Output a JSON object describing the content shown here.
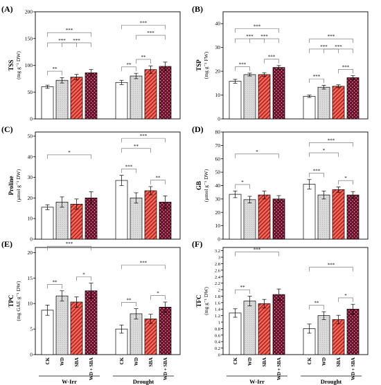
{
  "figure": {
    "treatments": [
      "CK",
      "WD",
      "SBA",
      "WD + SBA"
    ],
    "conditions": [
      "W-Irr",
      "Drought"
    ],
    "colors": {
      "CK": "#ffffff",
      "WD": "#d9d9d9",
      "SBA": "#f26b5a",
      "WD + SBA": "#6b0f2a",
      "SBA_hatch": "#b02020",
      "WD + SBA_dots": "#f0b8c8",
      "axis": "#000000",
      "bracket": "#666666"
    }
  },
  "chart_data": [
    {
      "panel": "(A)",
      "type": "bar",
      "title": "",
      "ylabel": "TSS",
      "yunit": "(mg g⁻¹ DW)",
      "ylim": [
        0,
        200
      ],
      "yticks": [
        0,
        50,
        100,
        150,
        200
      ],
      "categories": [
        "CK",
        "WD",
        "SBA",
        "WD + SBA"
      ],
      "groups": [
        "W-Irr",
        "Drought"
      ],
      "series": [
        {
          "group": "W-Irr",
          "values": [
            60,
            72,
            78,
            86
          ],
          "errors": [
            3,
            5,
            5,
            6
          ]
        },
        {
          "group": "Drought",
          "values": [
            68,
            80,
            92,
            98
          ],
          "errors": [
            4,
            5,
            7,
            8
          ]
        }
      ],
      "annotations": [
        {
          "group": "W-Irr",
          "from": 0,
          "to": 1,
          "label": "**"
        },
        {
          "group": "W-Irr",
          "from": 0,
          "to": 2,
          "label": "***"
        },
        {
          "group": "W-Irr",
          "from": 1,
          "to": 3,
          "label": "***"
        },
        {
          "group": "W-Irr",
          "from": 0,
          "to": 3,
          "label": "***"
        },
        {
          "group": "Drought",
          "from": 0,
          "to": 1,
          "label": "**"
        },
        {
          "group": "Drought",
          "from": 1,
          "to": 2,
          "label": "**"
        },
        {
          "group": "Drought",
          "from": 1,
          "to": 3,
          "label": "***"
        },
        {
          "group": "Drought",
          "from": 0,
          "to": 3,
          "label": "***"
        }
      ]
    },
    {
      "panel": "(B)",
      "type": "bar",
      "title": "",
      "ylabel": "TSP",
      "yunit": "(mg g⁻¹ FW)",
      "ylim": [
        0,
        45
      ],
      "yticks": [
        0,
        10,
        20,
        30,
        40
      ],
      "categories": [
        "CK",
        "WD",
        "SBA",
        "WD + SBA"
      ],
      "groups": [
        "W-Irr",
        "Drought"
      ],
      "series": [
        {
          "group": "W-Irr",
          "values": [
            15.8,
            18.6,
            18.6,
            21.6
          ],
          "errors": [
            0.8,
            0.6,
            0.8,
            0.8
          ]
        },
        {
          "group": "Drought",
          "values": [
            9.5,
            13.3,
            13.7,
            17.3
          ],
          "errors": [
            0.5,
            0.8,
            0.6,
            0.8
          ]
        }
      ],
      "annotations": [
        {
          "group": "W-Irr",
          "from": 0,
          "to": 1,
          "label": "***"
        },
        {
          "group": "W-Irr",
          "from": 2,
          "to": 3,
          "label": "***"
        },
        {
          "group": "W-Irr",
          "from": 0,
          "to": 2,
          "label": "***"
        },
        {
          "group": "W-Irr",
          "from": 1,
          "to": 3,
          "label": "***"
        },
        {
          "group": "W-Irr",
          "from": 0,
          "to": 3,
          "label": "***"
        },
        {
          "group": "Drought",
          "from": 0,
          "to": 1,
          "label": "***"
        },
        {
          "group": "Drought",
          "from": 2,
          "to": 3,
          "label": "***"
        },
        {
          "group": "Drought",
          "from": 0,
          "to": 2,
          "label": "***"
        },
        {
          "group": "Drought",
          "from": 1,
          "to": 3,
          "label": "***"
        },
        {
          "group": "Drought",
          "from": 0,
          "to": 3,
          "label": "***"
        }
      ]
    },
    {
      "panel": "(C)",
      "type": "bar",
      "title": "",
      "ylabel": "Proline",
      "yunit": "(µmol g⁻¹ DW)",
      "ylim": [
        0,
        52
      ],
      "yticks": [
        0,
        10,
        20,
        30,
        40,
        50
      ],
      "categories": [
        "CK",
        "WD",
        "SBA",
        "WD + SBA"
      ],
      "groups": [
        "W-Irr",
        "Drought"
      ],
      "series": [
        {
          "group": "W-Irr",
          "values": [
            15.5,
            18,
            17,
            20
          ],
          "errors": [
            1.2,
            2.5,
            2.5,
            3
          ]
        },
        {
          "group": "Drought",
          "values": [
            28.5,
            20,
            23.5,
            18
          ],
          "errors": [
            2.5,
            2.5,
            2,
            3
          ]
        }
      ],
      "annotations": [
        {
          "group": "W-Irr",
          "from": 0,
          "to": 3,
          "label": "*"
        },
        {
          "group": "Drought",
          "from": 0,
          "to": 1,
          "label": "***"
        },
        {
          "group": "Drought",
          "from": 2,
          "to": 3,
          "label": "**"
        },
        {
          "group": "Drought",
          "from": 0,
          "to": 2,
          "label": "**"
        },
        {
          "group": "Drought",
          "from": 0,
          "to": 3,
          "label": "***"
        }
      ]
    },
    {
      "panel": "(D)",
      "type": "bar",
      "title": "",
      "ylabel": "GB",
      "yunit": "(µmol g⁻¹ DW)",
      "ylim": [
        0,
        80
      ],
      "yticks": [
        0,
        10,
        20,
        30,
        40,
        50,
        60,
        70,
        80
      ],
      "categories": [
        "CK",
        "WD",
        "SBA",
        "WD + SBA"
      ],
      "groups": [
        "W-Irr",
        "Drought"
      ],
      "series": [
        {
          "group": "W-Irr",
          "values": [
            33.5,
            29.5,
            33,
            30
          ],
          "errors": [
            2.5,
            2.5,
            3,
            2.5
          ]
        },
        {
          "group": "Drought",
          "values": [
            41,
            33,
            37,
            33
          ],
          "errors": [
            3.5,
            3,
            2,
            2.5
          ]
        }
      ],
      "annotations": [
        {
          "group": "W-Irr",
          "from": 0,
          "to": 1,
          "label": "*"
        },
        {
          "group": "W-Irr",
          "from": 0,
          "to": 3,
          "label": "*"
        },
        {
          "group": "Drought",
          "from": 0,
          "to": 1,
          "label": "***"
        },
        {
          "group": "Drought",
          "from": 2,
          "to": 3,
          "label": "*"
        },
        {
          "group": "Drought",
          "from": 0,
          "to": 2,
          "label": "*"
        },
        {
          "group": "Drought",
          "from": 0,
          "to": 3,
          "label": "***"
        }
      ]
    },
    {
      "panel": "(E)",
      "type": "bar",
      "title": "",
      "ylabel": "TPC",
      "yunit": "(mg GAE g⁻¹ DW)",
      "ylim": [
        0,
        21
      ],
      "yticks": [
        0,
        5,
        10,
        15,
        20
      ],
      "categories": [
        "CK",
        "WD",
        "SBA",
        "WD + SBA"
      ],
      "groups": [
        "W-Irr",
        "Drought"
      ],
      "series": [
        {
          "group": "W-Irr",
          "values": [
            8.7,
            11.5,
            10.3,
            12.5
          ],
          "errors": [
            1.0,
            1.0,
            1.0,
            1.5
          ]
        },
        {
          "group": "Drought",
          "values": [
            5.0,
            8.0,
            7.0,
            9.3
          ],
          "errors": [
            0.8,
            1.0,
            0.9,
            1.0
          ]
        }
      ],
      "annotations": [
        {
          "group": "W-Irr",
          "from": 0,
          "to": 1,
          "label": "**"
        },
        {
          "group": "W-Irr",
          "from": 2,
          "to": 3,
          "label": "*"
        },
        {
          "group": "W-Irr",
          "from": 0,
          "to": 3,
          "label": "***"
        },
        {
          "group": "Drought",
          "from": 0,
          "to": 1,
          "label": "**"
        },
        {
          "group": "Drought",
          "from": 2,
          "to": 3,
          "label": "*"
        },
        {
          "group": "Drought",
          "from": 0,
          "to": 3,
          "label": "***"
        }
      ]
    },
    {
      "panel": "(F)",
      "type": "bar",
      "title": "",
      "ylabel": "TFC",
      "yunit": "(mg g⁻¹ DW)",
      "ylim": [
        0,
        3.3
      ],
      "yticks": [
        0,
        0.2,
        0.4,
        0.6,
        0.8,
        1.0,
        1.2,
        1.4,
        1.6,
        1.8,
        2.0,
        2.2,
        2.4,
        2.6,
        2.8,
        3.0,
        3.2
      ],
      "categories": [
        "CK",
        "WD",
        "SBA",
        "WD + SBA"
      ],
      "groups": [
        "W-Irr",
        "Drought"
      ],
      "series": [
        {
          "group": "W-Irr",
          "values": [
            1.28,
            1.65,
            1.57,
            1.85
          ],
          "errors": [
            0.13,
            0.15,
            0.13,
            0.17
          ]
        },
        {
          "group": "Drought",
          "values": [
            0.8,
            1.2,
            1.08,
            1.4
          ],
          "errors": [
            0.14,
            0.12,
            0.13,
            0.15
          ]
        }
      ],
      "annotations": [
        {
          "group": "W-Irr",
          "from": 0,
          "to": 1,
          "label": "**"
        },
        {
          "group": "W-Irr",
          "from": 0,
          "to": 3,
          "label": "***"
        },
        {
          "group": "Drought",
          "from": 0,
          "to": 1,
          "label": "**"
        },
        {
          "group": "Drought",
          "from": 2,
          "to": 3,
          "label": "*"
        },
        {
          "group": "Drought",
          "from": 0,
          "to": 3,
          "label": "***"
        }
      ]
    }
  ]
}
